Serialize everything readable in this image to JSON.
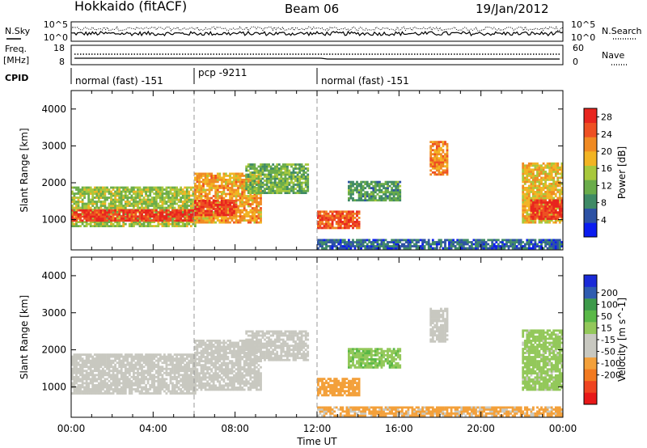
{
  "header": {
    "station": "Hokkaido (fitACF)",
    "beam": "Beam 06",
    "date": "19/Jan/2012"
  },
  "strip": {
    "nsky_label": "N.Sky",
    "nsearch_label": "N.Search",
    "noise_ticks_left": [
      "10^5",
      "10^0"
    ],
    "noise_ticks_right": [
      "10^5",
      "10^0"
    ],
    "freq_label": "Freq.",
    "freq_unit": "[MHz]",
    "freq_ticks": [
      "18",
      "8"
    ],
    "nave_label": "Nave",
    "nave_ticks": [
      "60",
      "0"
    ],
    "cpid_label": "CPID",
    "cpid_modes": [
      {
        "label": "normal (fast) -151",
        "start_hour": 0
      },
      {
        "label": "pcp -9211",
        "start_hour": 6
      },
      {
        "label": "normal (fast) -151",
        "start_hour": 12
      }
    ]
  },
  "chart_data": [
    {
      "type": "heatmap",
      "panel": "power",
      "ylabel": "Slant Range [km]",
      "xlabel": "",
      "xlim": [
        0,
        24
      ],
      "ylim": [
        180,
        4500
      ],
      "yticks": [
        "1000",
        "2000",
        "3000",
        "4000"
      ],
      "colorbar": {
        "label": "Power [dB]",
        "ticks": [
          "4",
          "8",
          "12",
          "16",
          "20",
          "24",
          "28"
        ],
        "range": [
          0,
          30
        ],
        "colors": [
          "#0b1cf0",
          "#2d52a4",
          "#3f8a66",
          "#6aac4a",
          "#a8c83c",
          "#f2b423",
          "#f08a22",
          "#ee5022",
          "#e8251e"
        ]
      },
      "regions": [
        {
          "t0": 0.0,
          "t1": 6.0,
          "r0": 800,
          "r1": 1900,
          "level": 14
        },
        {
          "t0": 0.0,
          "t1": 6.0,
          "r0": 950,
          "r1": 1250,
          "level": 27
        },
        {
          "t0": 6.0,
          "t1": 9.2,
          "r0": 900,
          "r1": 2250,
          "level": 20
        },
        {
          "t0": 6.0,
          "t1": 8.0,
          "r0": 1100,
          "r1": 1500,
          "level": 27
        },
        {
          "t0": 8.5,
          "t1": 11.5,
          "r0": 1700,
          "r1": 2500,
          "level": 12
        },
        {
          "t0": 12.0,
          "t1": 14.0,
          "r0": 750,
          "r1": 1200,
          "level": 25
        },
        {
          "t0": 13.5,
          "t1": 16.0,
          "r0": 1500,
          "r1": 2000,
          "level": 10
        },
        {
          "t0": 17.5,
          "t1": 18.4,
          "r0": 2200,
          "r1": 3100,
          "level": 22
        },
        {
          "t0": 22.0,
          "t1": 24.0,
          "r0": 900,
          "r1": 2500,
          "level": 18
        },
        {
          "t0": 22.4,
          "t1": 24.0,
          "r0": 1000,
          "r1": 1500,
          "level": 28
        },
        {
          "t0": 12.0,
          "t1": 24.0,
          "r0": 200,
          "r1": 450,
          "level": 6
        }
      ]
    },
    {
      "type": "heatmap",
      "panel": "velocity",
      "ylabel": "Slant Range [km]",
      "xlabel": "Time UT",
      "xlim": [
        0,
        24
      ],
      "ylim": [
        180,
        4500
      ],
      "xticks": [
        "00:00",
        "04:00",
        "08:00",
        "12:00",
        "16:00",
        "20:00",
        "00:00"
      ],
      "yticks": [
        "1000",
        "2000",
        "3000",
        "4000"
      ],
      "colorbar": {
        "label": "Velocity [m s^-1]",
        "ticks": [
          "200",
          "100",
          "50",
          "15",
          "-15",
          "-50",
          "-100",
          "-200"
        ],
        "range": [
          -250,
          250
        ],
        "colors": [
          "#e81818",
          "#ef4420",
          "#f27a20",
          "#f3a03a",
          "#c8c8c0",
          "#c8c8c0",
          "#93c85a",
          "#59b847",
          "#3d9a4a",
          "#2f5cb0",
          "#1a2ad8"
        ]
      },
      "regions": [
        {
          "t0": 0.0,
          "t1": 6.0,
          "r0": 800,
          "r1": 1900,
          "level": 0
        },
        {
          "t0": 6.0,
          "t1": 9.2,
          "r0": 900,
          "r1": 2250,
          "level": 0
        },
        {
          "t0": 8.5,
          "t1": 11.5,
          "r0": 1700,
          "r1": 2500,
          "level": 0
        },
        {
          "t0": 12.0,
          "t1": 14.0,
          "r0": 750,
          "r1": 1200,
          "level": -90
        },
        {
          "t0": 13.5,
          "t1": 16.0,
          "r0": 1500,
          "r1": 2000,
          "level": 60
        },
        {
          "t0": 17.5,
          "t1": 18.4,
          "r0": 2200,
          "r1": 3100,
          "level": 0
        },
        {
          "t0": 22.0,
          "t1": 24.0,
          "r0": 900,
          "r1": 2500,
          "level": 40
        },
        {
          "t0": 12.0,
          "t1": 24.0,
          "r0": 200,
          "r1": 450,
          "level": -80
        }
      ]
    }
  ]
}
